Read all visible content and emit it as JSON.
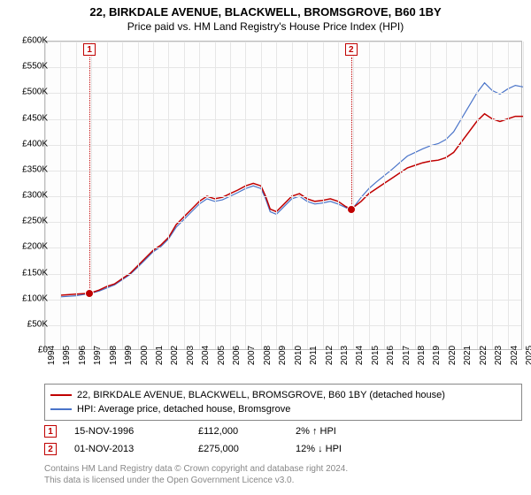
{
  "title_line1": "22, BIRKDALE AVENUE, BLACKWELL, BROMSGROVE, B60 1BY",
  "title_line2": "Price paid vs. HM Land Registry's House Price Index (HPI)",
  "chart": {
    "type": "line",
    "background_color": "#fdfdfd",
    "grid_color": "#e6e6e6",
    "border_color": "#bbbbbb",
    "x_axis": {
      "min": 1994,
      "max": 2025,
      "step": 1,
      "label_fontsize": 10,
      "rotation": -90
    },
    "y_axis": {
      "min": 0,
      "max": 600000,
      "step": 50000,
      "tick_labels": [
        "£0",
        "£50K",
        "£100K",
        "£150K",
        "£200K",
        "£250K",
        "£300K",
        "£350K",
        "£400K",
        "£450K",
        "£500K",
        "£550K",
        "£600K"
      ],
      "label_fontsize": 10
    },
    "series": [
      {
        "name": "22, BIRKDALE AVENUE, BLACKWELL, BROMSGROVE, B60 1BY (detached house)",
        "color": "#c00000",
        "line_width": 1.5,
        "data": [
          [
            1995.0,
            108
          ],
          [
            1996.0,
            110
          ],
          [
            1996.9,
            112
          ],
          [
            1997.5,
            118
          ],
          [
            1998.0,
            125
          ],
          [
            1998.5,
            130
          ],
          [
            1999.0,
            140
          ],
          [
            1999.5,
            150
          ],
          [
            2000.0,
            165
          ],
          [
            2000.5,
            180
          ],
          [
            2001.0,
            195
          ],
          [
            2001.5,
            205
          ],
          [
            2002.0,
            220
          ],
          [
            2002.5,
            245
          ],
          [
            2003.0,
            260
          ],
          [
            2003.5,
            275
          ],
          [
            2004.0,
            290
          ],
          [
            2004.5,
            300
          ],
          [
            2005.0,
            295
          ],
          [
            2005.5,
            298
          ],
          [
            2006.0,
            305
          ],
          [
            2006.5,
            312
          ],
          [
            2007.0,
            320
          ],
          [
            2007.5,
            325
          ],
          [
            2008.0,
            320
          ],
          [
            2008.3,
            300
          ],
          [
            2008.6,
            275
          ],
          [
            2009.0,
            270
          ],
          [
            2009.5,
            285
          ],
          [
            2010.0,
            300
          ],
          [
            2010.5,
            305
          ],
          [
            2011.0,
            295
          ],
          [
            2011.5,
            290
          ],
          [
            2012.0,
            292
          ],
          [
            2012.5,
            295
          ],
          [
            2013.0,
            290
          ],
          [
            2013.5,
            280
          ],
          [
            2013.85,
            275
          ],
          [
            2014.5,
            290
          ],
          [
            2015.0,
            305
          ],
          [
            2015.5,
            315
          ],
          [
            2016.0,
            325
          ],
          [
            2016.5,
            335
          ],
          [
            2017.0,
            345
          ],
          [
            2017.5,
            355
          ],
          [
            2018.0,
            360
          ],
          [
            2018.5,
            365
          ],
          [
            2019.0,
            368
          ],
          [
            2019.5,
            370
          ],
          [
            2020.0,
            375
          ],
          [
            2020.5,
            385
          ],
          [
            2021.0,
            405
          ],
          [
            2021.5,
            425
          ],
          [
            2022.0,
            445
          ],
          [
            2022.5,
            460
          ],
          [
            2023.0,
            450
          ],
          [
            2023.5,
            445
          ],
          [
            2024.0,
            450
          ],
          [
            2024.5,
            455
          ],
          [
            2025.0,
            455
          ]
        ]
      },
      {
        "name": "HPI: Average price, detached house, Bromsgrove",
        "color": "#4a74c9",
        "line_width": 1.2,
        "data": [
          [
            1995.0,
            105
          ],
          [
            1996.0,
            107
          ],
          [
            1997.0,
            112
          ],
          [
            1997.5,
            116
          ],
          [
            1998.0,
            122
          ],
          [
            1998.5,
            128
          ],
          [
            1999.0,
            138
          ],
          [
            1999.5,
            148
          ],
          [
            2000.0,
            162
          ],
          [
            2000.5,
            177
          ],
          [
            2001.0,
            192
          ],
          [
            2001.5,
            202
          ],
          [
            2002.0,
            217
          ],
          [
            2002.5,
            240
          ],
          [
            2003.0,
            255
          ],
          [
            2003.5,
            270
          ],
          [
            2004.0,
            285
          ],
          [
            2004.5,
            295
          ],
          [
            2005.0,
            290
          ],
          [
            2005.5,
            293
          ],
          [
            2006.0,
            300
          ],
          [
            2006.5,
            307
          ],
          [
            2007.0,
            315
          ],
          [
            2007.5,
            320
          ],
          [
            2008.0,
            315
          ],
          [
            2008.3,
            295
          ],
          [
            2008.6,
            270
          ],
          [
            2009.0,
            265
          ],
          [
            2009.5,
            280
          ],
          [
            2010.0,
            295
          ],
          [
            2010.5,
            300
          ],
          [
            2011.0,
            290
          ],
          [
            2011.5,
            285
          ],
          [
            2012.0,
            287
          ],
          [
            2012.5,
            290
          ],
          [
            2013.0,
            285
          ],
          [
            2013.5,
            278
          ],
          [
            2013.85,
            272
          ],
          [
            2014.5,
            298
          ],
          [
            2015.0,
            315
          ],
          [
            2015.5,
            328
          ],
          [
            2016.0,
            340
          ],
          [
            2016.5,
            352
          ],
          [
            2017.0,
            365
          ],
          [
            2017.5,
            378
          ],
          [
            2018.0,
            385
          ],
          [
            2018.5,
            392
          ],
          [
            2019.0,
            398
          ],
          [
            2019.5,
            402
          ],
          [
            2020.0,
            410
          ],
          [
            2020.5,
            425
          ],
          [
            2021.0,
            450
          ],
          [
            2021.5,
            475
          ],
          [
            2022.0,
            500
          ],
          [
            2022.5,
            520
          ],
          [
            2023.0,
            505
          ],
          [
            2023.5,
            498
          ],
          [
            2024.0,
            508
          ],
          [
            2024.5,
            515
          ],
          [
            2025.0,
            512
          ]
        ]
      }
    ],
    "markers": [
      {
        "label": "1",
        "x": 1996.88,
        "y": 112,
        "line_color": "#c00000",
        "dot_color": "#c00000"
      },
      {
        "label": "2",
        "x": 2013.85,
        "y": 275,
        "line_color": "#c00000",
        "dot_color": "#c00000"
      }
    ]
  },
  "legend": {
    "border_color": "#888888",
    "items": [
      {
        "color": "#c00000",
        "label": "22, BIRKDALE AVENUE, BLACKWELL, BROMSGROVE, B60 1BY (detached house)"
      },
      {
        "color": "#4a74c9",
        "label": "HPI: Average price, detached house, Bromsgrove"
      }
    ]
  },
  "transactions": [
    {
      "num": "1",
      "date": "15-NOV-1996",
      "price": "£112,000",
      "delta": "2% ↑ HPI"
    },
    {
      "num": "2",
      "date": "01-NOV-2013",
      "price": "£275,000",
      "delta": "12% ↓ HPI"
    }
  ],
  "footer_line1": "Contains HM Land Registry data © Crown copyright and database right 2024.",
  "footer_line2": "This data is licensed under the Open Government Licence v3.0."
}
